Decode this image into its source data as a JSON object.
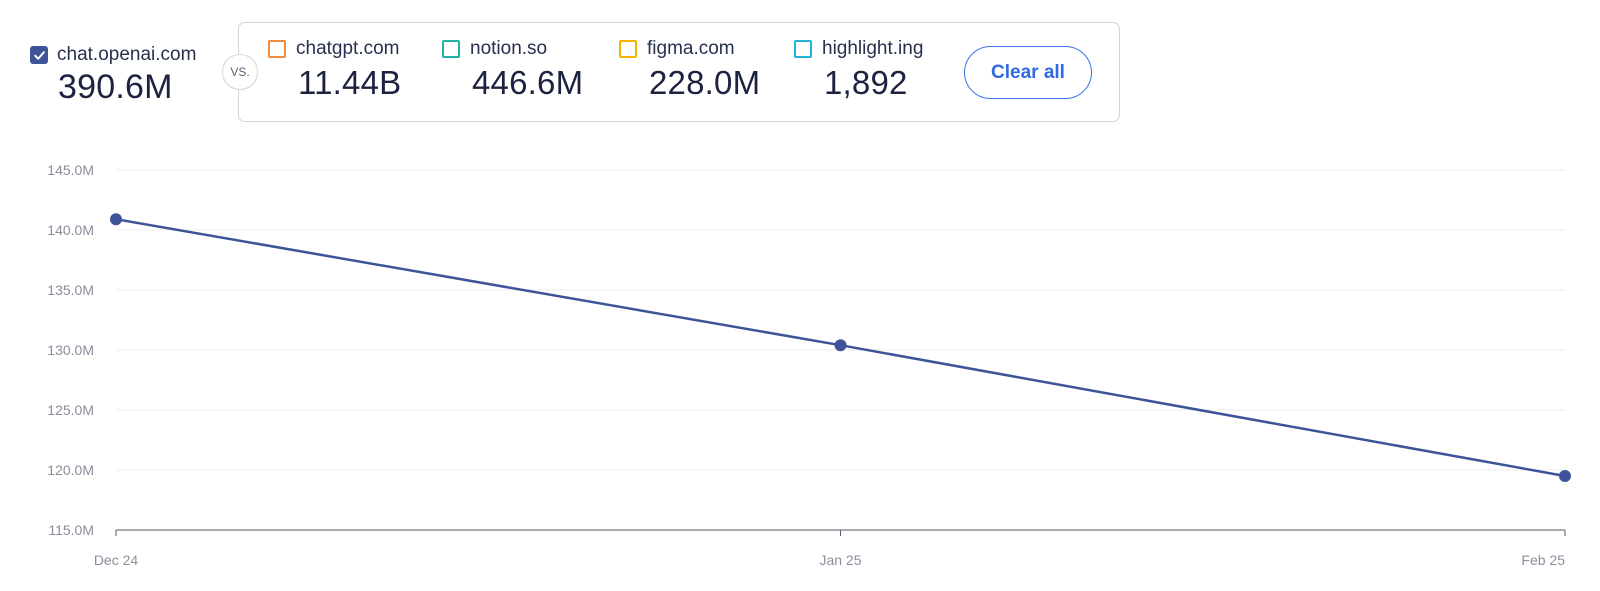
{
  "primary": {
    "site": "chat.openai.com",
    "value": "390.6M",
    "checked": true,
    "color": "#3e5398"
  },
  "vs_label": "VS.",
  "comparisons": [
    {
      "site": "chatgpt.com",
      "value": "11.44B",
      "color": "#f08a3c"
    },
    {
      "site": "notion.so",
      "value": "446.6M",
      "color": "#22b3a4"
    },
    {
      "site": "figma.com",
      "value": "228.0M",
      "color": "#f5b400"
    },
    {
      "site": "highlight.ing",
      "value": "1,892",
      "color": "#1fb3d8"
    }
  ],
  "clear_all_label": "Clear all",
  "chart_data": {
    "type": "line",
    "x": [
      "Dec 24",
      "Jan 25",
      "Feb 25"
    ],
    "series": [
      {
        "name": "chat.openai.com",
        "color": "#3e5398",
        "values": [
          140.9,
          130.4,
          119.5
        ]
      }
    ],
    "ylim": [
      115,
      145
    ],
    "yticks": [
      "115.0M",
      "120.0M",
      "125.0M",
      "130.0M",
      "135.0M",
      "140.0M",
      "145.0M"
    ],
    "grid": true
  }
}
